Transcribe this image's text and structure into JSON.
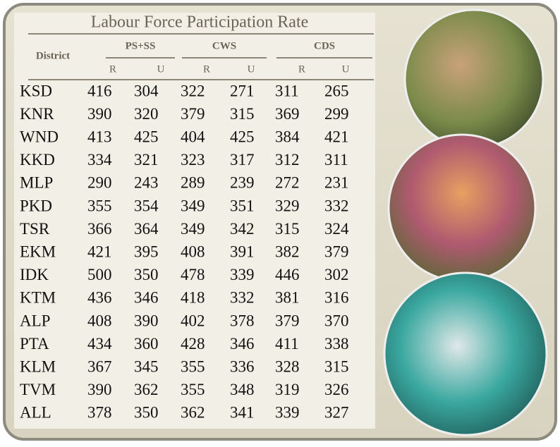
{
  "table": {
    "title": "Labour Force Participation Rate",
    "row_header": "District",
    "groups": [
      "PS+SS",
      "CWS",
      "CDS"
    ],
    "subheaders": [
      "R",
      "U",
      "R",
      "U",
      "R",
      "U"
    ],
    "rows": [
      [
        "KSD",
        416,
        304,
        322,
        271,
        311,
        265
      ],
      [
        "KNR",
        390,
        320,
        379,
        315,
        369,
        299
      ],
      [
        "WND",
        413,
        425,
        404,
        425,
        384,
        421
      ],
      [
        "KKD",
        334,
        321,
        323,
        317,
        312,
        311
      ],
      [
        "MLP",
        290,
        243,
        289,
        239,
        272,
        231
      ],
      [
        "PKD",
        355,
        354,
        349,
        351,
        329,
        332
      ],
      [
        "TSR",
        366,
        364,
        349,
        342,
        315,
        324
      ],
      [
        "EKM",
        421,
        395,
        408,
        391,
        382,
        379
      ],
      [
        "IDK",
        500,
        350,
        478,
        339,
        446,
        302
      ],
      [
        "KTM",
        436,
        346,
        418,
        332,
        381,
        316
      ],
      [
        "ALP",
        408,
        390,
        402,
        378,
        379,
        370
      ],
      [
        "PTA",
        434,
        360,
        428,
        346,
        411,
        338
      ],
      [
        "KLM",
        367,
        345,
        355,
        336,
        328,
        315
      ],
      [
        "TVM",
        390,
        362,
        355,
        348,
        319,
        326
      ],
      [
        "ALL",
        378,
        350,
        362,
        341,
        339,
        327
      ]
    ]
  }
}
